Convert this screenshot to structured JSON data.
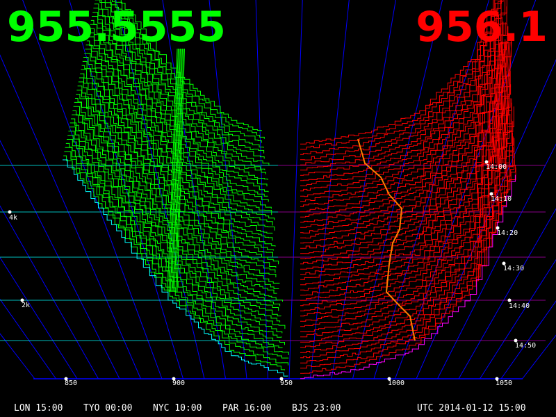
{
  "prices": {
    "bid": "955.5555",
    "ask": "956.1"
  },
  "colors": {
    "bid": "#00ff00",
    "ask": "#ff0000",
    "grid": "#0000ff",
    "bid_floor": "#00ffff",
    "ask_floor": "#ff00ff",
    "trade_line": "#ff8000"
  },
  "price_axis": [
    "850",
    "900",
    "950",
    "1000",
    "1050"
  ],
  "depth_axis": [
    "4k",
    "2k"
  ],
  "time_axis": [
    "14:00",
    "14:10",
    "14:20",
    "14:30",
    "14:40",
    "14:50"
  ],
  "clocks": [
    "LON 15:00",
    "TYO 00:00",
    "NYC 10:00",
    "PAR 16:00",
    "BJS 23:00"
  ],
  "utc": "UTC 2014-01-12 15:00"
}
